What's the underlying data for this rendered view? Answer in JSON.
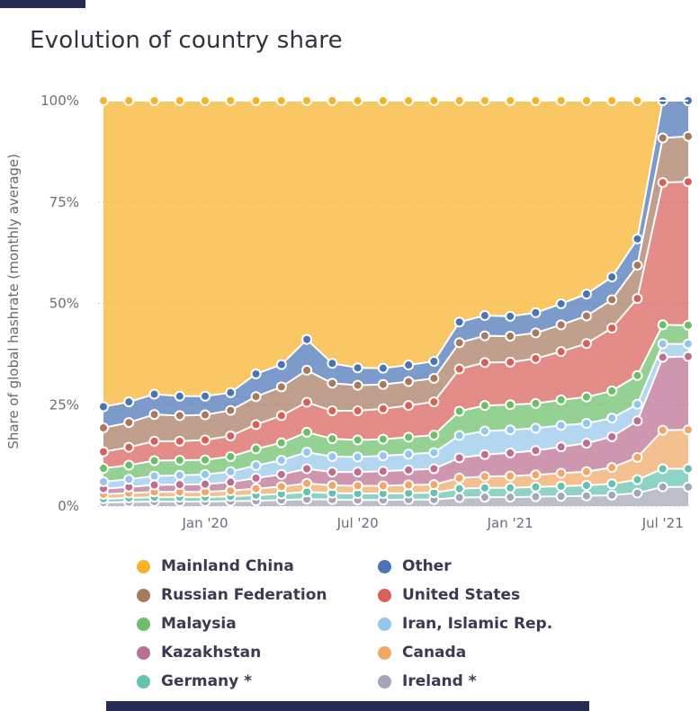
{
  "chart_data": {
    "type": "area",
    "stacking": "percent",
    "title": "Evolution of country share",
    "ylabel": "Share of global hashrate (monthly average)",
    "xlabel": "",
    "ylim": [
      0,
      100
    ],
    "grid": "dotted-horizontal",
    "legend_position": "bottom",
    "y_ticks": [
      "0%",
      "25%",
      "50%",
      "75%",
      "100%"
    ],
    "y_tick_values": [
      0,
      25,
      50,
      75,
      100
    ],
    "x": [
      "Sep '19",
      "Oct '19",
      "Nov '19",
      "Dec '19",
      "Jan '20",
      "Feb '20",
      "Mar '20",
      "Apr '20",
      "May '20",
      "Jun '20",
      "Jul '20",
      "Aug '20",
      "Sep '20",
      "Oct '20",
      "Nov '20",
      "Dec '20",
      "Jan '21",
      "Feb '21",
      "Mar '21",
      "Apr '21",
      "May '21",
      "Jun '21",
      "Jul '21",
      "Aug '21"
    ],
    "x_ticks": [
      {
        "index": 4,
        "label": "Jan '20"
      },
      {
        "index": 10,
        "label": "Jul '20"
      },
      {
        "index": 16,
        "label": "Jan '21"
      },
      {
        "index": 22,
        "label": "Jul '21"
      }
    ],
    "stack_order_bottom_to_top": [
      "Ireland *",
      "Germany *",
      "Canada",
      "Kazakhstan",
      "Iran, Islamic Rep.",
      "Malaysia",
      "United States",
      "Russian Federation",
      "Other",
      "Mainland China"
    ],
    "series": [
      {
        "name": "Mainland China",
        "color": "#F8B229",
        "values": [
          75.5,
          74.3,
          72.4,
          72.9,
          72.9,
          72.0,
          67.4,
          65.1,
          58.9,
          64.8,
          65.9,
          66.0,
          65.2,
          64.3,
          54.6,
          53.0,
          53.2,
          52.3,
          50.1,
          47.7,
          43.5,
          34.1,
          0,
          0
        ]
      },
      {
        "name": "Other",
        "color": "#4A74B5",
        "values": [
          5.2,
          5.1,
          5.0,
          4.8,
          4.6,
          4.4,
          5.6,
          5.5,
          7.6,
          4.9,
          4.3,
          4.0,
          4.1,
          4.2,
          5.1,
          5.0,
          4.9,
          5.0,
          5.2,
          5.4,
          5.6,
          6.5,
          9.2,
          8.8
        ]
      },
      {
        "name": "Russian Federation",
        "color": "#A77A60",
        "values": [
          5.9,
          6.1,
          6.6,
          6.3,
          6.2,
          6.3,
          6.9,
          7.1,
          7.9,
          6.8,
          6.3,
          6.0,
          5.9,
          5.8,
          6.5,
          6.6,
          6.4,
          6.3,
          6.6,
          6.8,
          7.0,
          8.2,
          11.0,
          11.2
        ]
      },
      {
        "name": "United States",
        "color": "#D8605A",
        "values": [
          4.1,
          4.4,
          4.8,
          4.7,
          4.9,
          5.1,
          6.0,
          6.7,
          7.4,
          6.9,
          7.2,
          7.5,
          7.8,
          8.2,
          10.4,
          10.6,
          10.5,
          11.1,
          11.9,
          13.2,
          15.5,
          19.0,
          35.1,
          35.4
        ]
      },
      {
        "name": "Malaysia",
        "color": "#6CBF69",
        "values": [
          3.3,
          3.5,
          3.8,
          3.7,
          3.6,
          3.7,
          4.1,
          4.3,
          4.9,
          4.4,
          4.2,
          4.1,
          4.2,
          4.3,
          6.0,
          6.3,
          6.2,
          6.1,
          6.3,
          6.5,
          6.7,
          7.1,
          4.7,
          4.6
        ]
      },
      {
        "name": "Iran, Islamic Rep.",
        "color": "#95C6EC",
        "values": [
          1.7,
          1.9,
          2.2,
          2.3,
          2.4,
          2.6,
          3.1,
          3.5,
          4.1,
          3.8,
          3.7,
          3.8,
          3.9,
          4.0,
          5.5,
          5.8,
          5.7,
          5.5,
          5.3,
          4.9,
          4.6,
          4.1,
          3.3,
          3.1
        ]
      },
      {
        "name": "Kazakhstan",
        "color": "#BC6F90",
        "values": [
          1.4,
          1.5,
          1.7,
          1.8,
          1.9,
          2.1,
          2.6,
          3.0,
          3.6,
          3.3,
          3.4,
          3.6,
          3.7,
          3.9,
          5.0,
          5.4,
          5.7,
          6.0,
          6.5,
          7.0,
          7.6,
          9.0,
          18.0,
          18.1
        ]
      },
      {
        "name": "Canada",
        "color": "#F1A765",
        "values": [
          1.1,
          1.2,
          1.3,
          1.3,
          1.3,
          1.4,
          1.6,
          1.8,
          2.1,
          1.9,
          1.9,
          1.9,
          2.0,
          2.0,
          2.6,
          2.8,
          2.9,
          3.0,
          3.2,
          3.4,
          4.0,
          5.5,
          9.5,
          9.6
        ]
      },
      {
        "name": "Germany *",
        "color": "#64C2AE",
        "values": [
          0.9,
          1.0,
          1.1,
          1.1,
          1.1,
          1.2,
          1.4,
          1.5,
          1.8,
          1.6,
          1.6,
          1.6,
          1.6,
          1.7,
          2.2,
          2.3,
          2.3,
          2.4,
          2.5,
          2.6,
          2.8,
          3.3,
          4.5,
          4.5
        ]
      },
      {
        "name": "Ireland *",
        "color": "#A2A6B6",
        "values": [
          0.9,
          1.0,
          1.1,
          1.1,
          1.1,
          1.2,
          1.3,
          1.5,
          1.7,
          1.6,
          1.5,
          1.5,
          1.6,
          1.6,
          2.1,
          2.2,
          2.2,
          2.3,
          2.4,
          2.5,
          2.7,
          3.2,
          4.7,
          4.7
        ]
      }
    ],
    "colors": {
      "grid": "#C9CDD6",
      "axis_text": "#6D6D79",
      "title_text": "#32323C",
      "legend_text": "#3A3A50",
      "page_chrome": "#262B54"
    }
  }
}
